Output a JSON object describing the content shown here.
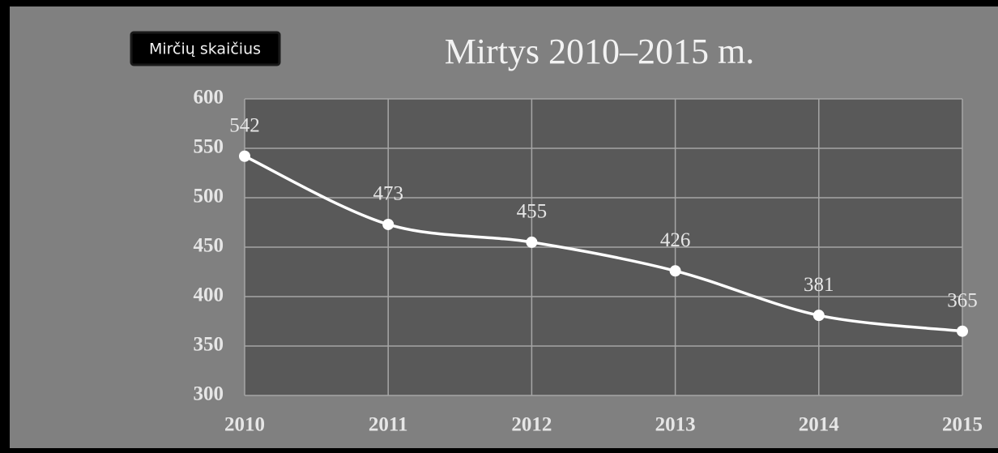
{
  "chart_data": {
    "type": "line",
    "title": "Mirtys 2010–2015 m.",
    "x": [
      2010,
      2011,
      2012,
      2013,
      2014,
      2015
    ],
    "series": [
      {
        "name": "Mirčių skaičius",
        "color": "#ffffff",
        "values": [
          542,
          473,
          455,
          426,
          381,
          365
        ]
      }
    ],
    "xlim": [
      2010,
      2015
    ],
    "xticks": [
      2010,
      2011,
      2012,
      2013,
      2014,
      2015
    ],
    "ylim": [
      300,
      600
    ],
    "yticks": [
      300,
      350,
      400,
      450,
      500,
      550,
      600
    ],
    "grid": true,
    "legend": "top-left"
  }
}
